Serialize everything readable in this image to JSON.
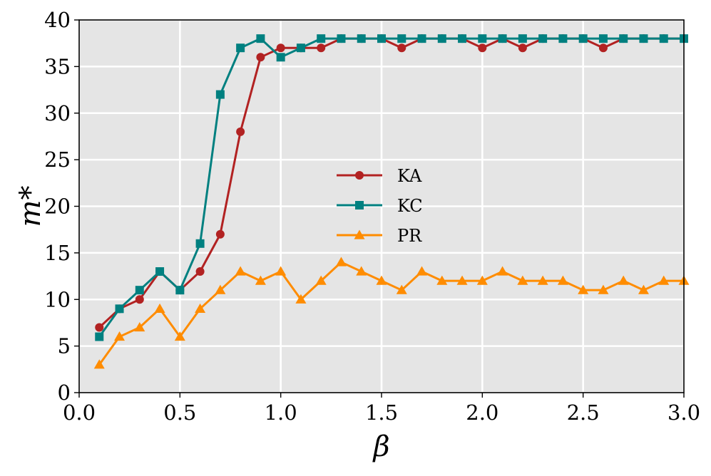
{
  "chart_data": {
    "type": "line",
    "xlabel": "β",
    "ylabel": "m*",
    "xlim": [
      0.0,
      3.0
    ],
    "ylim": [
      0,
      40
    ],
    "xticks": [
      "0.0",
      "0.5",
      "1.0",
      "1.5",
      "2.0",
      "2.5",
      "3.0"
    ],
    "yticks": [
      "0",
      "5",
      "10",
      "15",
      "20",
      "25",
      "30",
      "35",
      "40"
    ],
    "grid": true,
    "background": "#e5e5e5",
    "legend_position": "center",
    "x": [
      0.1,
      0.2,
      0.3,
      0.4,
      0.5,
      0.6,
      0.7,
      0.8,
      0.9,
      1.0,
      1.1,
      1.2,
      1.3,
      1.4,
      1.5,
      1.6,
      1.7,
      1.8,
      1.9,
      2.0,
      2.1,
      2.2,
      2.3,
      2.4,
      2.5,
      2.6,
      2.7,
      2.8,
      2.9,
      3.0
    ],
    "series": [
      {
        "name": "KA",
        "color": "#b22222",
        "marker": "circle",
        "values": [
          7,
          9,
          10,
          13,
          11,
          13,
          17,
          28,
          36,
          37,
          37,
          37,
          38,
          38,
          38,
          37,
          38,
          38,
          38,
          37,
          38,
          37,
          38,
          38,
          38,
          37,
          38,
          38,
          38,
          38
        ]
      },
      {
        "name": "KC",
        "color": "#008080",
        "marker": "square",
        "values": [
          6,
          9,
          11,
          13,
          11,
          16,
          32,
          37,
          38,
          36,
          37,
          38,
          38,
          38,
          38,
          38,
          38,
          38,
          38,
          38,
          38,
          38,
          38,
          38,
          38,
          38,
          38,
          38,
          38,
          38
        ]
      },
      {
        "name": "PR",
        "color": "#ff8c00",
        "marker": "triangle",
        "values": [
          3,
          6,
          7,
          9,
          6,
          9,
          11,
          13,
          12,
          13,
          10,
          12,
          14,
          13,
          12,
          11,
          13,
          12,
          12,
          12,
          13,
          12,
          12,
          12,
          11,
          11,
          12,
          11,
          12,
          12
        ]
      }
    ]
  }
}
